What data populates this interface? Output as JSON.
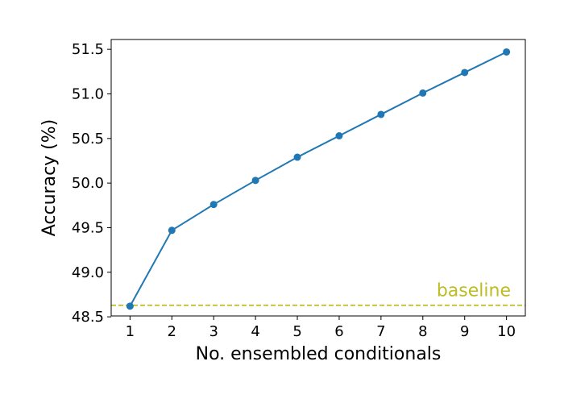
{
  "chart_data": {
    "type": "line",
    "title": "",
    "xlabel": "No. ensembled conditionals",
    "ylabel": "Accuracy (%)",
    "x": [
      1,
      2,
      3,
      4,
      5,
      6,
      7,
      8,
      9,
      10
    ],
    "series": [
      {
        "values": [
          48.62,
          49.47,
          49.76,
          50.03,
          50.29,
          50.53,
          50.77,
          51.01,
          51.24,
          51.47
        ],
        "color": "#1f77b4"
      }
    ],
    "baseline": {
      "label": "baseline",
      "value": 48.63,
      "color": "#bcbd22",
      "style": "dashed"
    },
    "xlim": [
      0.55,
      10.45
    ],
    "ylim": [
      48.51,
      51.61
    ],
    "xticks": [
      1,
      2,
      3,
      4,
      5,
      6,
      7,
      8,
      9,
      10
    ],
    "xtick_labels": [
      "1",
      "2",
      "3",
      "4",
      "5",
      "6",
      "7",
      "8",
      "9",
      "10"
    ],
    "yticks": [
      48.5,
      49.0,
      49.5,
      50.0,
      50.5,
      51.0,
      51.5
    ],
    "ytick_labels": [
      "48.5",
      "49.0",
      "49.5",
      "50.0",
      "50.5",
      "51.0",
      "51.5"
    ],
    "grid": false,
    "legend": false
  }
}
